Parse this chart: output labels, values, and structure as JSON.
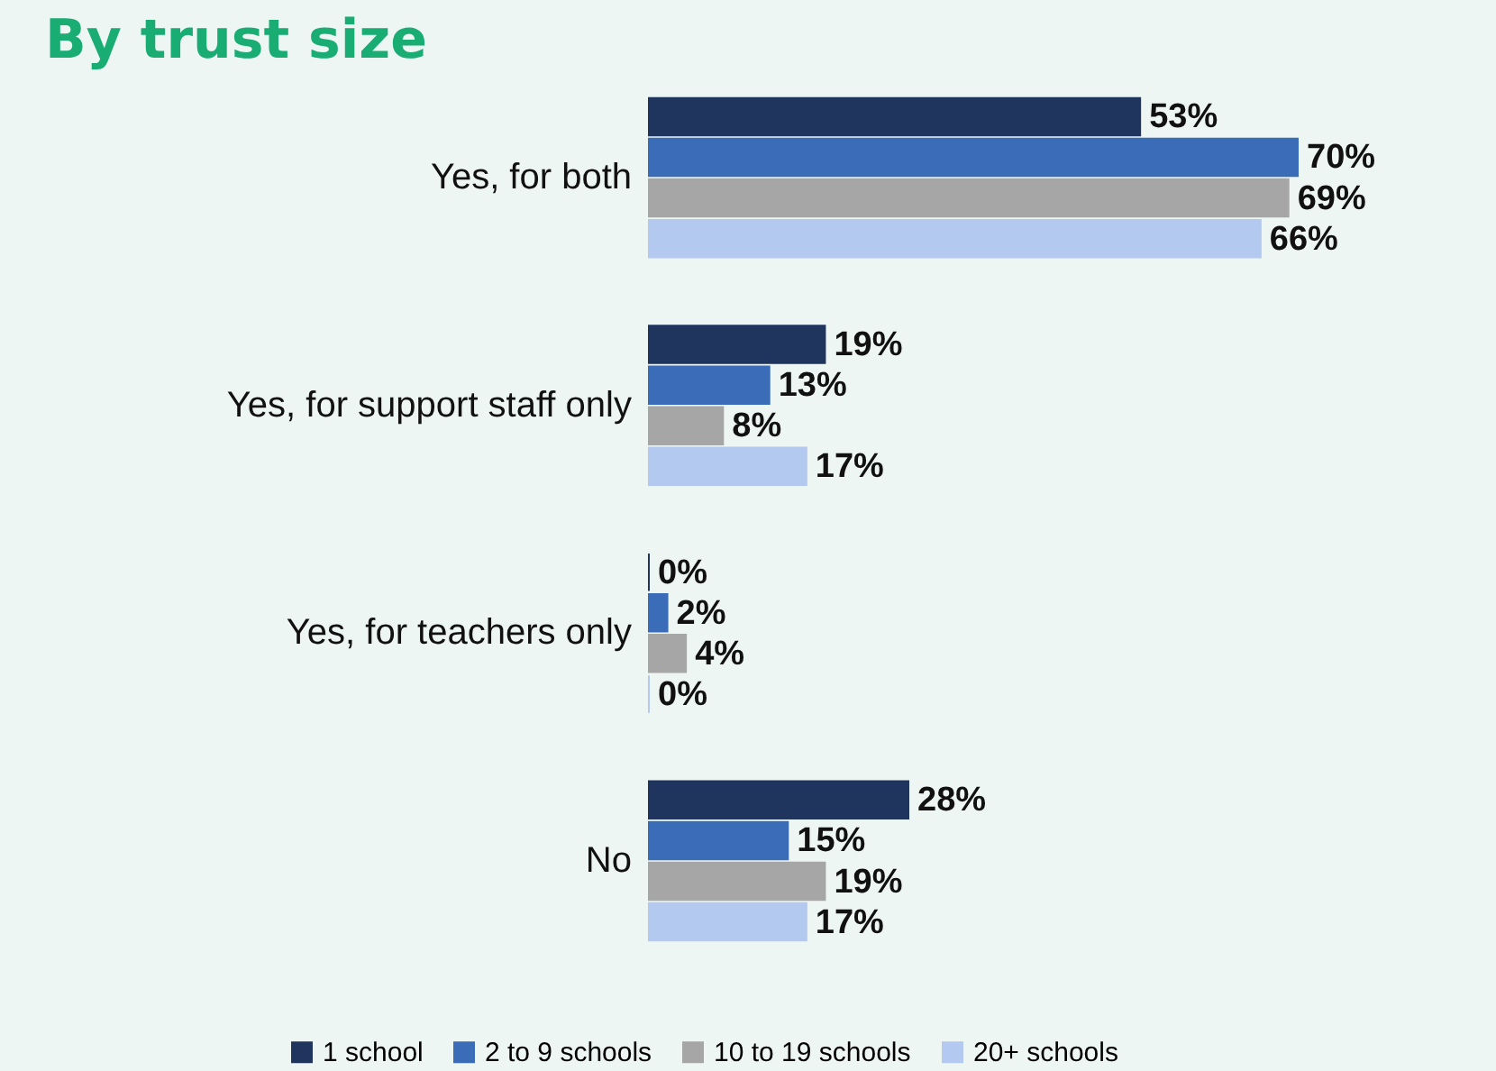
{
  "chart_data": {
    "type": "bar",
    "orientation": "horizontal",
    "title": "By trust size",
    "categories": [
      "Yes, for both",
      "Yes, for support staff only",
      "Yes, for teachers only",
      "No"
    ],
    "series": [
      {
        "name": "1 school",
        "color": "#1f355e",
        "values": [
          53,
          19,
          0,
          28
        ],
        "value_labels": [
          "53%",
          "19%",
          "0%",
          "28%"
        ]
      },
      {
        "name": "2 to 9 schools",
        "color": "#3b6cb7",
        "values": [
          70,
          13,
          2,
          15
        ],
        "value_labels": [
          "70%",
          "13%",
          "2%",
          "15%"
        ]
      },
      {
        "name": "10 to 19 schools",
        "color": "#a6a6a6",
        "values": [
          69,
          8,
          4,
          19
        ],
        "value_labels": [
          "69%",
          "8%",
          "4%",
          "19%"
        ]
      },
      {
        "name": "20+ schools",
        "color": "#b4c9f0",
        "values": [
          66,
          17,
          0,
          17
        ],
        "value_labels": [
          "66%",
          "17%",
          "0%",
          "17%"
        ]
      }
    ],
    "legend": "bottom",
    "grid": false
  }
}
